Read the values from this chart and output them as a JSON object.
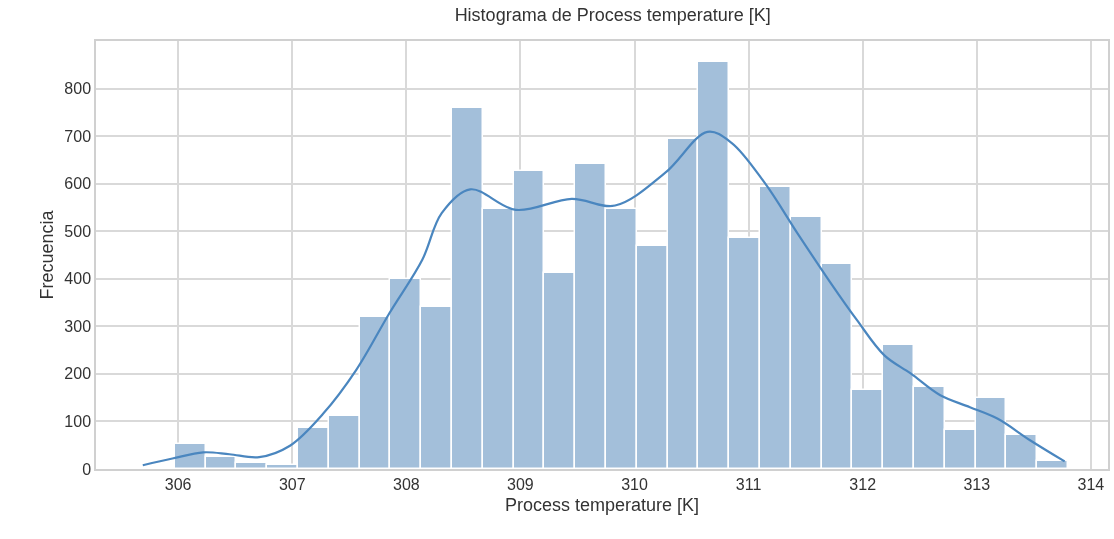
{
  "chart_data": {
    "type": "histogram",
    "title": "Histograma de Process temperature [K]",
    "xlabel": "Process temperature [K]",
    "ylabel": "Frecuencia",
    "bins": [
      305.7,
      305.97,
      306.24,
      306.51,
      306.78,
      307.05,
      307.32,
      307.59,
      307.86,
      308.13,
      308.4,
      308.67,
      308.94,
      309.21,
      309.48,
      309.75,
      310.02,
      310.29,
      310.56,
      310.83,
      311.1,
      311.37,
      311.64,
      311.91,
      312.18,
      312.45,
      312.72,
      312.99,
      313.26,
      313.53,
      313.8
    ],
    "values": [
      3,
      53,
      26,
      13,
      8,
      87,
      111,
      319,
      400,
      340,
      759,
      547,
      627,
      413,
      642,
      547,
      468,
      694,
      856,
      486,
      594,
      529,
      431,
      166,
      261,
      172,
      81,
      150,
      71,
      16
    ],
    "color": "#a3bfda",
    "series": [
      {
        "type": "line",
        "color": "#4a86bf",
        "x": [
          305.69,
          305.95,
          306.22,
          306.45,
          306.71,
          306.98,
          307.27,
          307.56,
          307.85,
          308.14,
          308.31,
          308.56,
          308.96,
          309.45,
          309.83,
          310.27,
          310.64,
          310.85,
          311.14,
          311.43,
          311.72,
          311.95,
          312.19,
          312.42,
          312.68,
          312.94,
          313.18,
          313.47,
          313.77
        ],
        "values": [
          8,
          22,
          35,
          31,
          25,
          49,
          116,
          208,
          327,
          440,
          538,
          588,
          545,
          568,
          554,
          623,
          709,
          686,
          602,
          495,
          391,
          313,
          239,
          201,
          155,
          130,
          106,
          60,
          16
        ]
      }
    ],
    "xlim": [
      305.28,
      314.15
    ],
    "ylim": [
      0,
      900
    ],
    "xticks": [
      306,
      307,
      308,
      309,
      310,
      311,
      312,
      313,
      314
    ],
    "yticks": [
      0,
      100,
      200,
      300,
      400,
      500,
      600,
      700,
      800
    ],
    "grid": true
  }
}
